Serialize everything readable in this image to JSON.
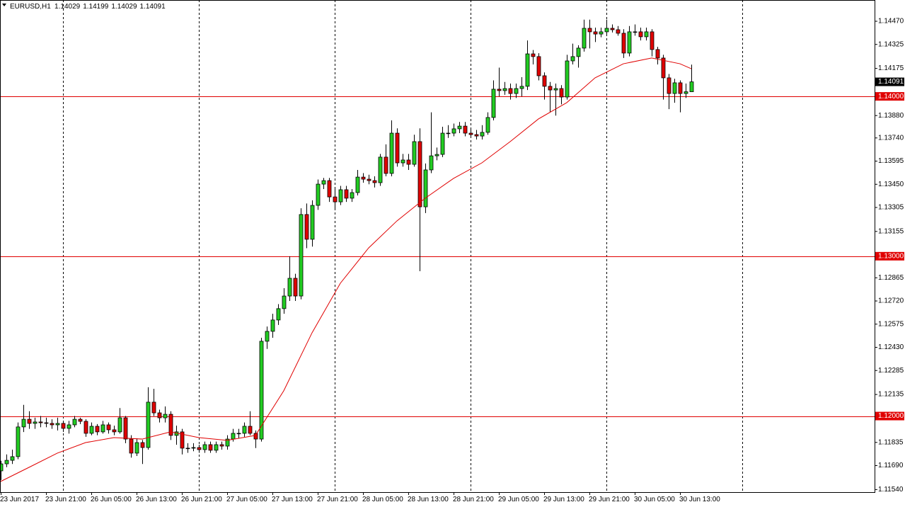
{
  "chart_data": {
    "type": "candlestick",
    "title": "EURUSD,H1",
    "up_color": "#22cc22",
    "down_color": "#e00000",
    "categories": [
      "23 Jun 2017",
      null,
      null,
      null,
      null,
      null,
      null,
      null,
      "23 Jun 21:00",
      null,
      null,
      null,
      null,
      null,
      null,
      null,
      "26 Jun 05:00",
      null,
      null,
      null,
      null,
      null,
      null,
      null,
      "26 Jun 13:00",
      null,
      null,
      null,
      null,
      null,
      null,
      null,
      "26 Jun 21:00",
      null,
      null,
      null,
      null,
      null,
      null,
      null,
      "27 Jun 05:00",
      null,
      null,
      null,
      null,
      null,
      null,
      null,
      "27 Jun 13:00",
      null,
      null,
      null,
      null,
      null,
      null,
      null,
      "27 Jun 21:00",
      null,
      null,
      null,
      null,
      null,
      null,
      null,
      "28 Jun 05:00",
      null,
      null,
      null,
      null,
      null,
      null,
      null,
      "28 Jun 13:00",
      null,
      null,
      null,
      null,
      null,
      null,
      null,
      "28 Jun 21:00",
      null,
      null,
      null,
      null,
      null,
      null,
      null,
      "29 Jun 05:00",
      null,
      null,
      null,
      null,
      null,
      null,
      null,
      "29 Jun 13:00",
      null,
      null,
      null,
      null,
      null,
      null,
      null,
      "29 Jun 21:00",
      null,
      null,
      null,
      null,
      null,
      null,
      null,
      "30 Jun 05:00",
      null,
      null,
      null,
      null,
      null,
      null,
      null,
      "30 Jun 13:00",
      null,
      null
    ],
    "open": [
      1.11657,
      1.11701,
      1.11723,
      1.11746,
      1.11932,
      1.1198,
      1.11954,
      1.11963,
      1.11958,
      1.11954,
      1.11945,
      1.11954,
      1.11923,
      1.11945,
      1.1198,
      1.11967,
      1.11892,
      1.11936,
      1.11901,
      1.11945,
      1.11914,
      1.11901,
      1.11989,
      1.11856,
      1.11768,
      1.11834,
      1.11803,
      1.12087,
      1.1202,
      1.11989,
      1.12011,
      1.11879,
      1.11901,
      1.11799,
      1.11799,
      1.11803,
      1.1179,
      1.11821,
      1.11786,
      1.11821,
      1.11812,
      1.11856,
      1.11892,
      1.11892,
      1.11936,
      1.11892,
      1.11856,
      1.12468,
      1.1253,
      1.12601,
      1.12672,
      1.12751,
      1.12862,
      1.12751,
      1.13261,
      1.13106,
      1.13318,
      1.13451,
      1.13473,
      1.13371,
      1.1334,
      1.13416,
      1.13363,
      1.13398,
      1.13495,
      1.13482,
      1.13473,
      1.1346,
      1.1362,
      1.13518,
      1.1377,
      1.13584,
      1.13602,
      1.13575,
      1.13717,
      1.13309,
      1.1354,
      1.13628,
      1.13637,
      1.1377,
      1.1377,
      1.13797,
      1.13814,
      1.1377,
      1.13761,
      1.13752,
      1.13775,
      1.13868,
      1.14045,
      1.14036,
      1.14049,
      1.14018,
      1.14049,
      1.14063,
      1.14266,
      1.14249,
      1.14129,
      1.14063,
      1.1404,
      1.14049,
      1.13996,
      1.14222,
      1.14249,
      1.14302,
      1.14426,
      1.14404,
      1.1439,
      1.14404,
      1.14426,
      1.14417,
      1.14395,
      1.14271,
      1.14404,
      1.14404,
      1.14373,
      1.14404,
      1.14293,
      1.1424,
      1.14116,
      1.14018,
      1.14085,
      1.14018,
      1.14029
    ],
    "high": [
      1.1172,
      1.1176,
      1.1179,
      1.1196,
      1.1207,
      1.1203,
      1.1199,
      1.12,
      1.1199,
      1.1198,
      1.1199,
      1.1197,
      1.1197,
      1.12,
      1.1199,
      1.1198,
      1.1196,
      1.1195,
      1.1197,
      1.1196,
      1.1194,
      1.1205,
      1.12,
      1.1188,
      1.1186,
      1.1185,
      1.1218,
      1.1217,
      1.1204,
      1.1206,
      1.1203,
      1.1194,
      1.1192,
      1.1183,
      1.1183,
      1.1182,
      1.1184,
      1.1184,
      1.1184,
      1.1184,
      1.1188,
      1.1192,
      1.1192,
      1.1196,
      1.1203,
      1.1191,
      1.1249,
      1.1256,
      1.1264,
      1.127,
      1.128,
      1.13,
      1.1289,
      1.133,
      1.1333,
      1.1335,
      1.1348,
      1.1349,
      1.1349,
      1.1342,
      1.1344,
      1.1344,
      1.1342,
      1.1354,
      1.1352,
      1.1351,
      1.135,
      1.1364,
      1.137,
      1.1385,
      1.138,
      1.1364,
      1.1364,
      1.1376,
      1.138,
      1.1358,
      1.139,
      1.1368,
      1.1381,
      1.1382,
      1.1383,
      1.1384,
      1.1384,
      1.138,
      1.1379,
      1.1382,
      1.139,
      1.141,
      1.1418,
      1.1409,
      1.1408,
      1.1408,
      1.1412,
      1.1435,
      1.1429,
      1.1427,
      1.1415,
      1.1409,
      1.1408,
      1.1407,
      1.1426,
      1.1433,
      1.1432,
      1.1448,
      1.1448,
      1.1443,
      1.1443,
      1.1448,
      1.1445,
      1.1444,
      1.1442,
      1.1444,
      1.1445,
      1.1443,
      1.1443,
      1.1442,
      1.1431,
      1.1426,
      1.1414,
      1.1411,
      1.141,
      1.1408,
      1.14199
    ],
    "low": [
      1.116,
      1.1168,
      1.117,
      1.1173,
      1.119,
      1.1192,
      1.1192,
      1.1193,
      1.1193,
      1.1192,
      1.1191,
      1.119,
      1.1189,
      1.1193,
      1.1195,
      1.1187,
      1.1188,
      1.1188,
      1.1189,
      1.1189,
      1.1188,
      1.1189,
      1.1183,
      1.1174,
      1.1175,
      1.117,
      1.1179,
      1.12,
      1.1196,
      1.1196,
      1.1185,
      1.1182,
      1.1176,
      1.1177,
      1.1178,
      1.1177,
      1.1177,
      1.1177,
      1.1177,
      1.1179,
      1.1179,
      1.1184,
      1.1186,
      1.1187,
      1.1188,
      1.118,
      1.1184,
      1.1242,
      1.1249,
      1.1257,
      1.1264,
      1.1272,
      1.1272,
      1.1273,
      1.1305,
      1.1306,
      1.1329,
      1.1342,
      1.1334,
      1.133,
      1.1332,
      1.1334,
      1.1334,
      1.1338,
      1.1346,
      1.1345,
      1.1343,
      1.1344,
      1.135,
      1.135,
      1.1356,
      1.1356,
      1.1354,
      1.1356,
      1.12906,
      1.1327,
      1.1352,
      1.136,
      1.1362,
      1.1374,
      1.1375,
      1.1377,
      1.1375,
      1.1374,
      1.1373,
      1.1373,
      1.1376,
      1.1385,
      1.14,
      1.1401,
      1.1398,
      1.1399,
      1.14,
      1.1404,
      1.142,
      1.141,
      1.1398,
      1.139,
      1.1388,
      1.1395,
      1.1398,
      1.142,
      1.1418,
      1.1428,
      1.143,
      1.1434,
      1.1437,
      1.1439,
      1.144,
      1.1438,
      1.1424,
      1.1425,
      1.1438,
      1.1435,
      1.1435,
      1.1425,
      1.142,
      1.1398,
      1.1392,
      1.1396,
      1.139,
      1.1399,
      1.14029
    ],
    "close": [
      1.11701,
      1.11723,
      1.11746,
      1.11932,
      1.1198,
      1.11954,
      1.11963,
      1.11958,
      1.11954,
      1.11945,
      1.11954,
      1.11923,
      1.11945,
      1.1198,
      1.11967,
      1.11892,
      1.11936,
      1.11901,
      1.11945,
      1.11914,
      1.11901,
      1.11989,
      1.11856,
      1.11768,
      1.11834,
      1.11803,
      1.12087,
      1.1202,
      1.11989,
      1.12011,
      1.11879,
      1.11901,
      1.11799,
      1.11799,
      1.11803,
      1.1179,
      1.11821,
      1.11786,
      1.11821,
      1.11812,
      1.11856,
      1.11892,
      1.11892,
      1.11936,
      1.11892,
      1.11856,
      1.12468,
      1.1253,
      1.12601,
      1.12672,
      1.12751,
      1.12862,
      1.12751,
      1.13261,
      1.13106,
      1.13318,
      1.13451,
      1.13473,
      1.13371,
      1.1334,
      1.13416,
      1.13363,
      1.13398,
      1.13495,
      1.13482,
      1.13473,
      1.1346,
      1.1362,
      1.13518,
      1.1377,
      1.13584,
      1.13602,
      1.13575,
      1.13717,
      1.13309,
      1.1354,
      1.13628,
      1.13637,
      1.1377,
      1.1377,
      1.13797,
      1.13814,
      1.1377,
      1.13761,
      1.13752,
      1.13775,
      1.13868,
      1.14045,
      1.14036,
      1.14049,
      1.14018,
      1.14049,
      1.14063,
      1.14266,
      1.14249,
      1.14129,
      1.14063,
      1.1404,
      1.14049,
      1.13996,
      1.14222,
      1.14249,
      1.14302,
      1.14426,
      1.14404,
      1.1439,
      1.14404,
      1.14426,
      1.14417,
      1.14395,
      1.14271,
      1.14404,
      1.14404,
      1.14373,
      1.14404,
      1.14293,
      1.1424,
      1.14116,
      1.14018,
      1.14085,
      1.14018,
      1.14029,
      1.14091
    ],
    "ma": {
      "color": "#e00000",
      "x": [
        0,
        5,
        10,
        15,
        20,
        25,
        30,
        35,
        40,
        45,
        50,
        55,
        60,
        65,
        70,
        75,
        80,
        85,
        90,
        95,
        100,
        105,
        110,
        115,
        120,
        122
      ],
      "values": [
        1.11591,
        1.11679,
        1.11768,
        1.11834,
        1.11865,
        1.11856,
        1.11901,
        1.11865,
        1.11848,
        1.11879,
        1.12158,
        1.12521,
        1.12831,
        1.13052,
        1.13221,
        1.13363,
        1.13487,
        1.13584,
        1.13717,
        1.13859,
        1.13961,
        1.14116,
        1.14204,
        1.1424,
        1.14204,
        1.14173
      ]
    },
    "hlines": {
      "color": "#e00000",
      "levels": [
        {
          "value": 1.14,
          "label": "1.14000"
        },
        {
          "value": 1.13,
          "label": "1.13000"
        },
        {
          "value": 1.12,
          "label": "1.12000"
        }
      ]
    },
    "ylim": [
      1.11524,
      1.14603
    ],
    "yticks": [
      {
        "value": 1.1447,
        "label": "1.14470"
      },
      1.14325,
      1.14175,
      {
        "value": 1.1388,
        "label": "1.13880"
      },
      {
        "value": 1.1374,
        "label": "1.13740"
      },
      1.13595,
      {
        "value": 1.1345,
        "label": "1.13450"
      },
      1.13305,
      1.13155,
      1.12865,
      {
        "value": 1.1272,
        "label": "1.12720"
      },
      1.12575,
      {
        "value": 1.1243,
        "label": "1.12430"
      },
      1.12285,
      1.12135,
      1.11835,
      {
        "value": 1.1169,
        "label": "1.11690"
      },
      {
        "value": 1.1154,
        "label": "1.11540"
      }
    ]
  }
}
